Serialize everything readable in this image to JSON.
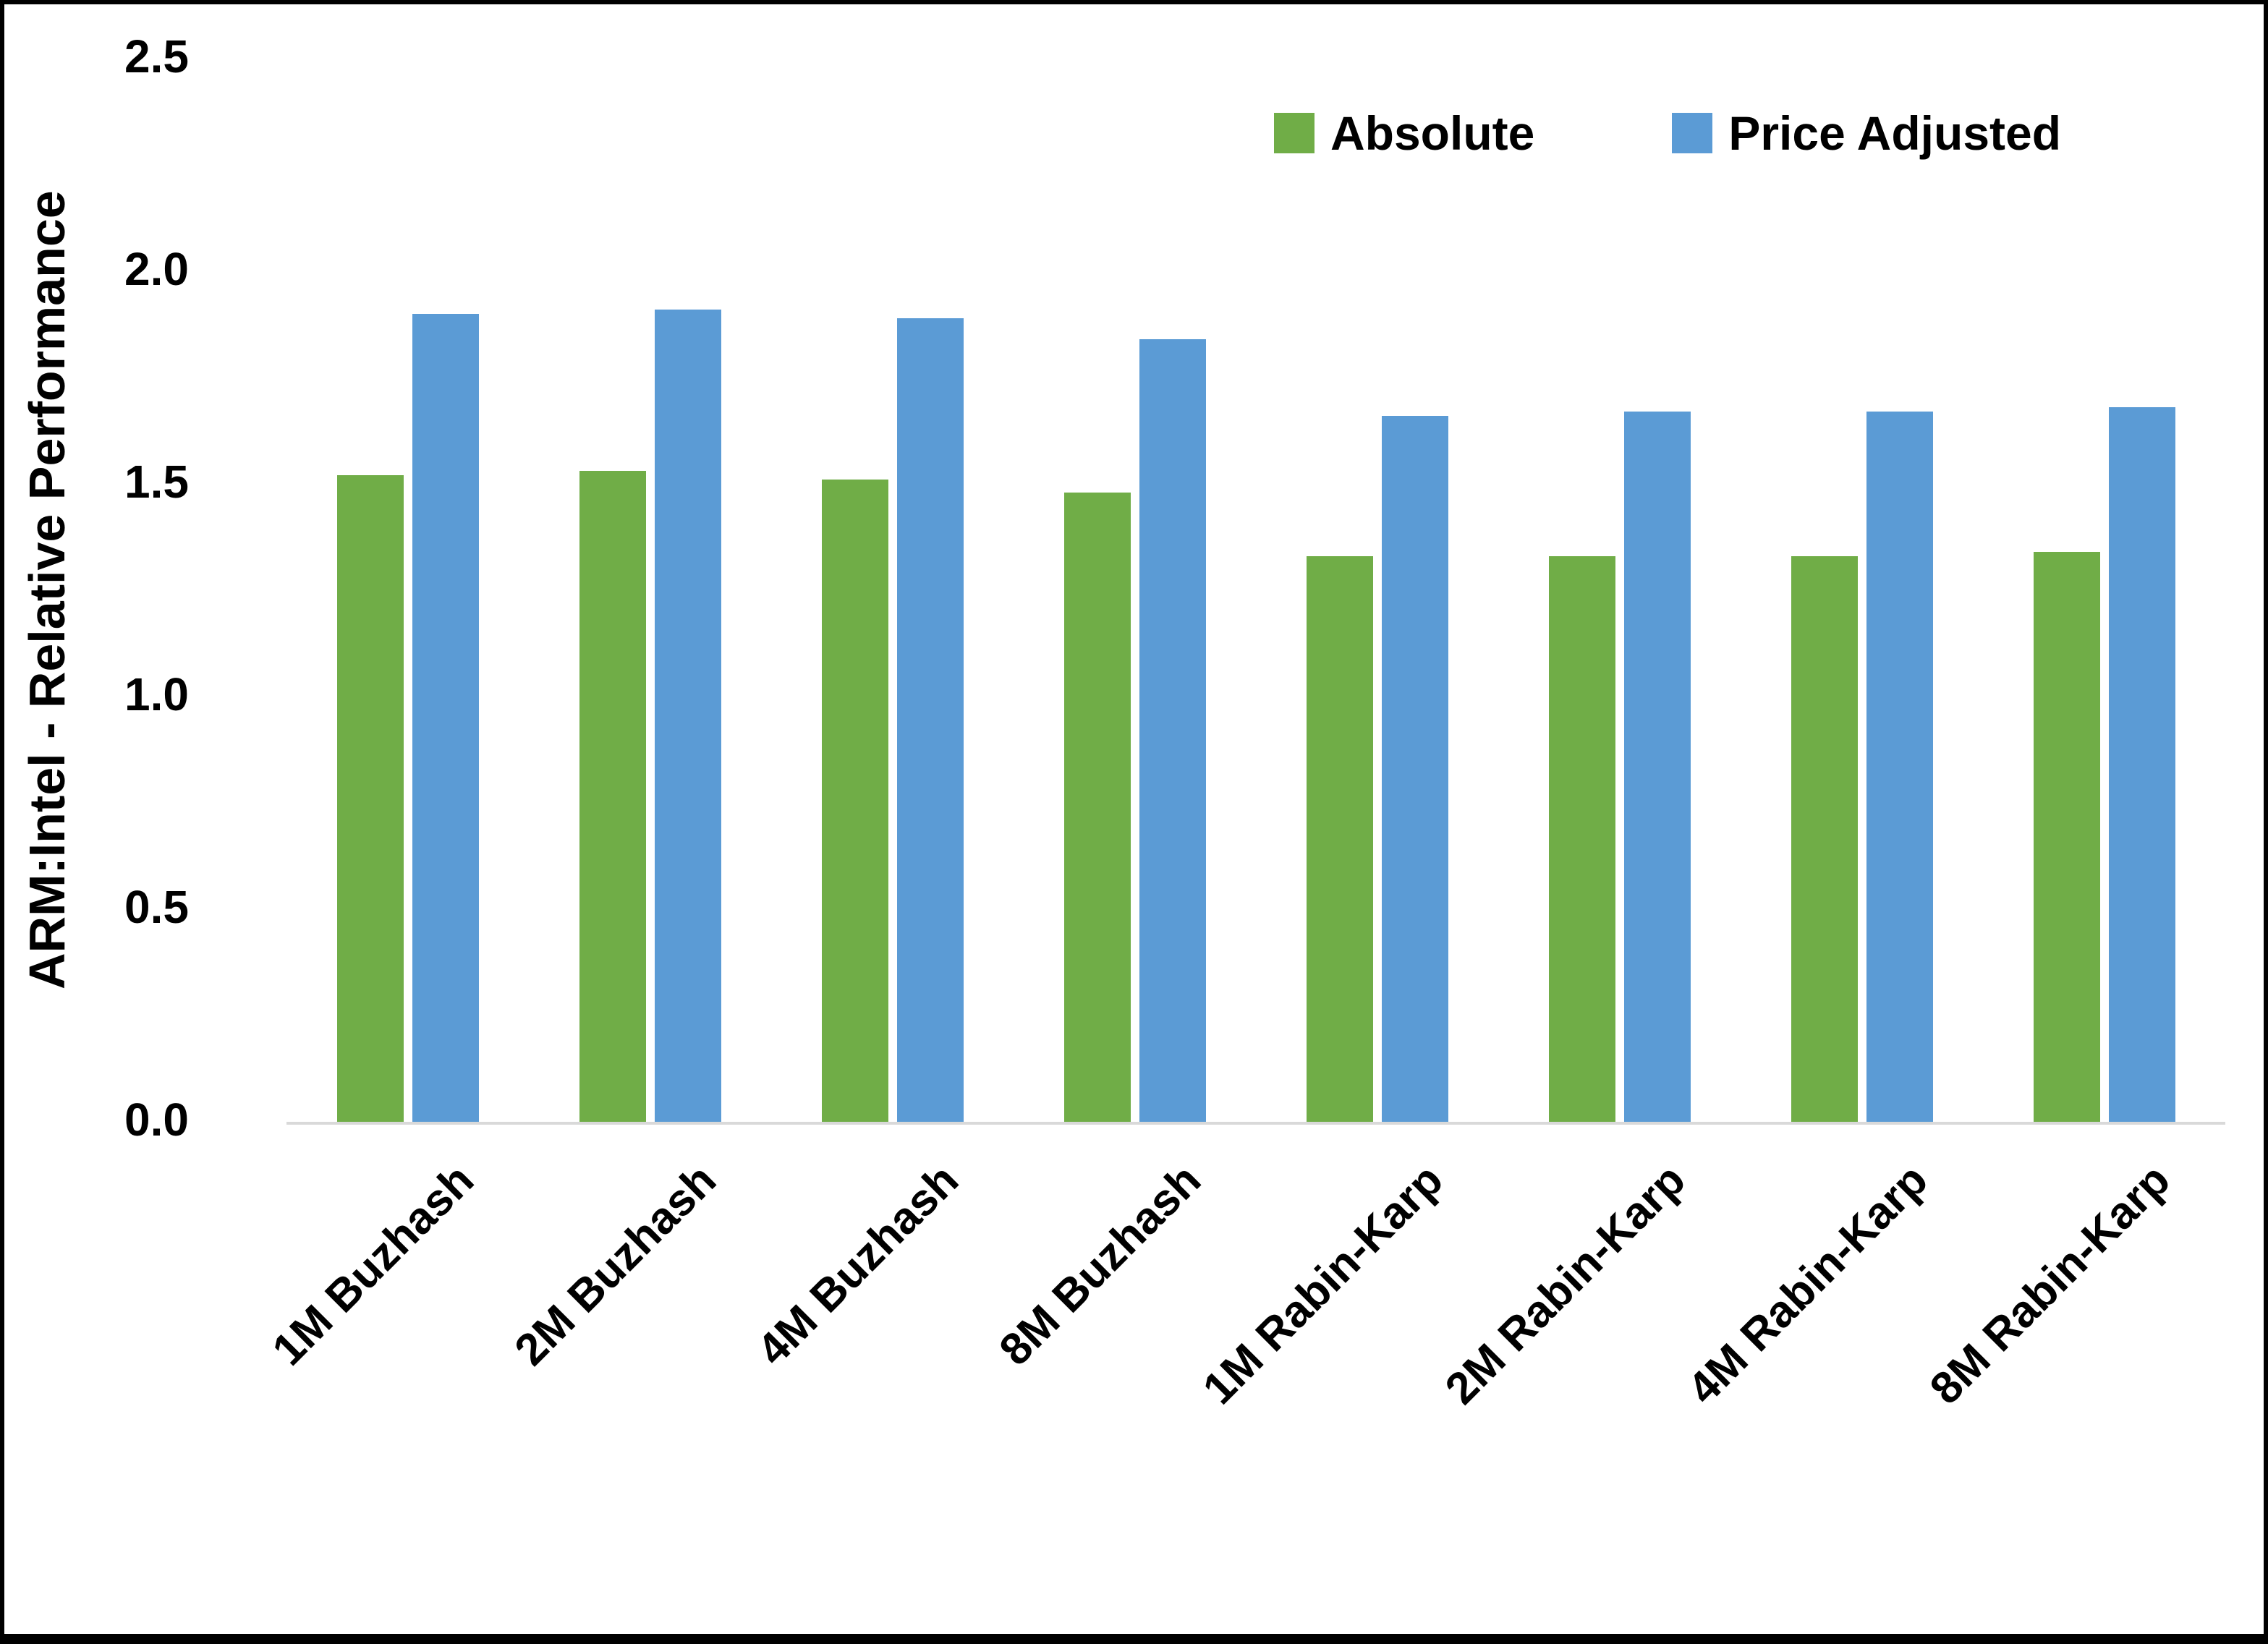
{
  "chart_data": {
    "type": "bar",
    "categories": [
      "1M Buzhash",
      "2M Buzhash",
      "4M Buzhash",
      "8M Buzhash",
      "1M Rabin-Karp",
      "2M Rabin-Karp",
      "4M Rabin-Karp",
      "8M Rabin-Karp"
    ],
    "series": [
      {
        "name": "Absolute",
        "color": "#70AD47",
        "values": [
          1.52,
          1.53,
          1.51,
          1.48,
          1.33,
          1.33,
          1.33,
          1.34
        ]
      },
      {
        "name": "Price Adjusted",
        "color": "#5B9BD5",
        "values": [
          1.9,
          1.91,
          1.89,
          1.84,
          1.66,
          1.67,
          1.67,
          1.68
        ]
      }
    ],
    "title": "",
    "xlabel": "",
    "ylabel": "ARM:Intel - Relative Performance",
    "ylim": [
      0,
      2.5
    ],
    "yticks": [
      0.0,
      0.5,
      1.0,
      1.5,
      2.0,
      2.5
    ],
    "ytick_labels": [
      "0.0",
      "0.5",
      "1.0",
      "1.5",
      "2.0",
      "2.5"
    ],
    "legend_position": "top-right",
    "grid": "off",
    "axis_color": "#d9d9d9"
  }
}
